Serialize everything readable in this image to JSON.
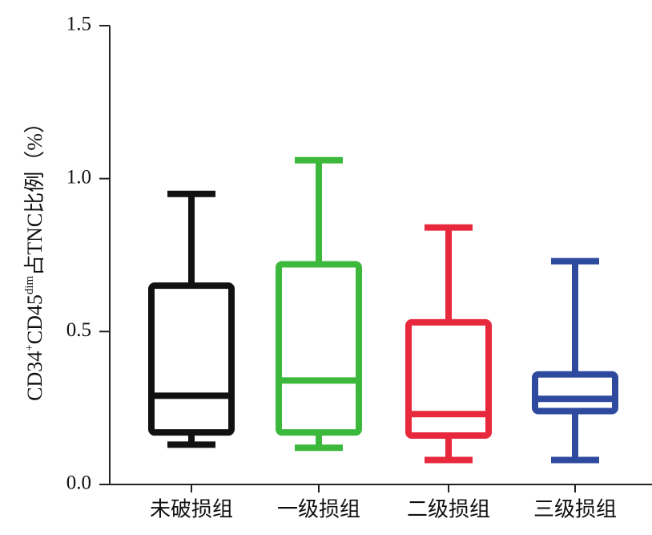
{
  "chart_data": {
    "type": "box",
    "y_label": [
      {
        "text": "CD34"
      },
      {
        "text": "+",
        "sup": true
      },
      {
        "text": "CD45"
      },
      {
        "text": "dim",
        "sup": true
      },
      {
        "text": "占TNC比例（%）"
      }
    ],
    "categories": [
      "未破损组",
      "一级损组",
      "二级损组",
      "三级损组"
    ],
    "boxes": [
      {
        "min": 0.13,
        "q1": 0.17,
        "median": 0.29,
        "q3": 0.65,
        "max": 0.95,
        "color": "#111111"
      },
      {
        "min": 0.12,
        "q1": 0.17,
        "median": 0.34,
        "q3": 0.72,
        "max": 1.06,
        "color": "#3cb93c"
      },
      {
        "min": 0.08,
        "q1": 0.16,
        "median": 0.23,
        "q3": 0.53,
        "max": 0.84,
        "color": "#e8283c"
      },
      {
        "min": 0.08,
        "q1": 0.24,
        "median": 0.28,
        "q3": 0.36,
        "max": 0.73,
        "color": "#2e4a9e"
      }
    ],
    "ylim": [
      0,
      1.5
    ],
    "yticks": [
      {
        "value": 0,
        "label": "0.0"
      },
      0.5,
      {
        "value": 1,
        "label": "1.0"
      },
      1.5
    ]
  }
}
